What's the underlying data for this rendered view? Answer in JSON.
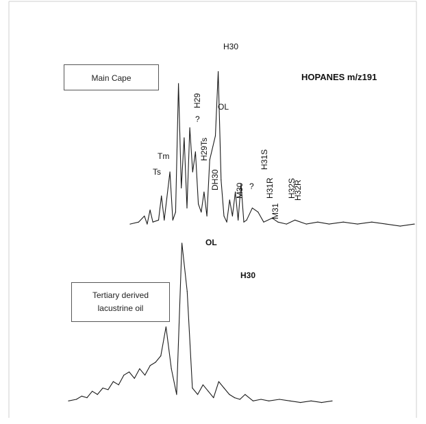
{
  "heading": "HOPANES m/z191",
  "box_labels": {
    "main_cape": "Main Cape",
    "tertiary_line1": "Tertiary derived",
    "tertiary_line2": "lacustrine oil"
  },
  "chart_data": [
    {
      "type": "line",
      "series": [
        {
          "name": "Main Cape",
          "x": [
            0,
            3,
            5,
            6,
            7,
            8,
            10,
            11,
            12,
            14,
            15,
            16,
            17,
            18,
            19,
            20,
            21,
            22,
            23,
            24,
            25,
            26,
            27,
            28,
            30,
            31,
            32,
            33,
            34,
            35,
            36,
            37,
            38,
            39,
            40,
            41,
            43,
            45,
            47,
            50,
            52,
            55,
            58,
            62,
            66,
            70,
            75,
            80,
            85,
            90,
            95,
            100
          ],
          "y": [
            2,
            3,
            6,
            2,
            9,
            3,
            4,
            16,
            4,
            28,
            4,
            8,
            72,
            20,
            45,
            10,
            50,
            28,
            38,
            12,
            8,
            18,
            6,
            34,
            46,
            78,
            24,
            6,
            3,
            14,
            6,
            18,
            4,
            22,
            3,
            4,
            10,
            8,
            3,
            5,
            3,
            2,
            4,
            2,
            3,
            2,
            3,
            2,
            3,
            2,
            1,
            2
          ]
        }
      ],
      "annotations": [
        "Ts",
        "Tm",
        "?",
        "H29",
        "H29Ts",
        "DH30",
        "OL",
        "H30",
        "M30",
        "?",
        "H31S",
        "H31R",
        "M31",
        "H32S",
        "H32R"
      ]
    },
    {
      "type": "line",
      "series": [
        {
          "name": "Tertiary derived lacustrine oil",
          "x": [
            0,
            3,
            5,
            7,
            9,
            11,
            13,
            15,
            17,
            19,
            21,
            23,
            25,
            27,
            29,
            31,
            33,
            35,
            37,
            39,
            41,
            43,
            45,
            47,
            49,
            51,
            53,
            55,
            57,
            59,
            61,
            63,
            65,
            67,
            70,
            73,
            76,
            80,
            84,
            88,
            92,
            96,
            100
          ],
          "y": [
            2,
            3,
            5,
            4,
            8,
            6,
            10,
            9,
            14,
            12,
            18,
            20,
            16,
            22,
            18,
            24,
            26,
            30,
            48,
            22,
            6,
            100,
            70,
            10,
            6,
            12,
            8,
            4,
            14,
            10,
            6,
            4,
            3,
            6,
            2,
            3,
            2,
            3,
            2,
            1,
            2,
            1,
            2
          ]
        }
      ],
      "annotations": [
        "OL",
        "H30"
      ]
    }
  ]
}
